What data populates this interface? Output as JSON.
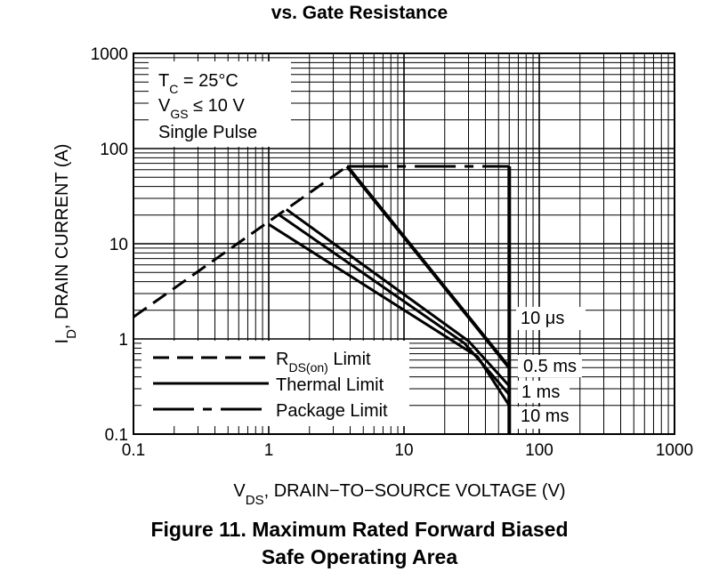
{
  "header": {
    "title": "vs. Gate Resistance"
  },
  "caption": {
    "line1": "Figure 11. Maximum Rated Forward Biased",
    "line2": "Safe Operating Area"
  },
  "chart_data": {
    "type": "line",
    "x_scale": "log",
    "y_scale": "log",
    "xlim": [
      0.1,
      1000
    ],
    "ylim": [
      0.1,
      1000
    ],
    "grid": true,
    "x_ticks": [
      "0.1",
      "1",
      "10",
      "100",
      "1000"
    ],
    "y_ticks": [
      "0.1",
      "1",
      "10",
      "100",
      "1000"
    ],
    "xlabel": {
      "base": "V",
      "sub": "DS",
      "rest": ", DRAIN−TO−SOURCE VOLTAGE (V)"
    },
    "ylabel": {
      "base": "I",
      "sub": "D",
      "rest": ", DRAIN CURRENT (A)"
    },
    "conditions": {
      "line1": {
        "base": "T",
        "sub": "C",
        "rest": " = 25°C"
      },
      "line2": {
        "base": "V",
        "sub": "GS",
        "rest": " ≤ 10 V"
      },
      "line3": "Single Pulse"
    },
    "legend": [
      {
        "base": "R",
        "sub": "DS(on)",
        "rest": " Limit",
        "style": "dashed"
      },
      {
        "base": "Thermal Limit",
        "sub": "",
        "rest": "",
        "style": "solid"
      },
      {
        "base": "Package Limit",
        "sub": "",
        "rest": "",
        "style": "dashdot"
      }
    ],
    "curve_labels": [
      "10 μs",
      "0.5 ms",
      "1 ms",
      "10 ms"
    ],
    "series": [
      {
        "style": "dashed",
        "points": [
          [
            0.1,
            1.7
          ],
          [
            3.8,
            65
          ]
        ]
      },
      {
        "style": "solid",
        "points": [
          [
            1.0,
            16
          ],
          [
            35,
            0.65
          ],
          [
            60,
            0.2
          ]
        ]
      },
      {
        "style": "solid",
        "points": [
          [
            1.2,
            20
          ],
          [
            28,
            0.9
          ],
          [
            60,
            0.26
          ]
        ]
      },
      {
        "style": "solid",
        "points": [
          [
            1.35,
            23
          ],
          [
            30,
            0.95
          ],
          [
            60,
            0.32
          ]
        ]
      },
      {
        "style": "solid",
        "points": [
          [
            3.8,
            65
          ],
          [
            60,
            0.5
          ]
        ]
      },
      {
        "style": "dashdot",
        "points": [
          [
            3.8,
            65
          ],
          [
            60,
            65
          ]
        ]
      },
      {
        "style": "solid",
        "points": [
          [
            60,
            65
          ],
          [
            60,
            0.1
          ]
        ]
      }
    ]
  }
}
